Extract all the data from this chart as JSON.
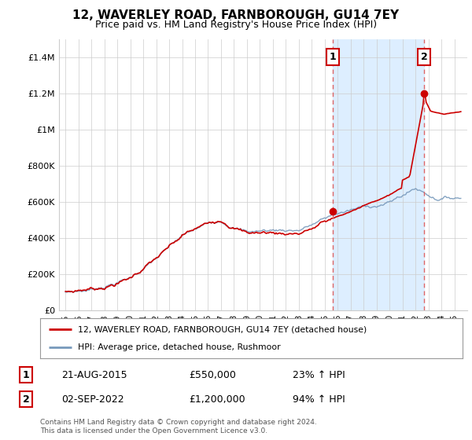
{
  "title": "12, WAVERLEY ROAD, FARNBOROUGH, GU14 7EY",
  "subtitle": "Price paid vs. HM Land Registry's House Price Index (HPI)",
  "legend_line1": "12, WAVERLEY ROAD, FARNBOROUGH, GU14 7EY (detached house)",
  "legend_line2": "HPI: Average price, detached house, Rushmoor",
  "annotation1_label": "1",
  "annotation1_date": "21-AUG-2015",
  "annotation1_price": "£550,000",
  "annotation1_hpi": "23% ↑ HPI",
  "annotation2_label": "2",
  "annotation2_date": "02-SEP-2022",
  "annotation2_price": "£1,200,000",
  "annotation2_hpi": "94% ↑ HPI",
  "footer": "Contains HM Land Registry data © Crown copyright and database right 2024.\nThis data is licensed under the Open Government Licence v3.0.",
  "sale1_x": 2015.64,
  "sale1_y": 550000,
  "sale2_x": 2022.67,
  "sale2_y": 1200000,
  "red_color": "#cc0000",
  "blue_color": "#7799bb",
  "shade_color": "#ddeeff",
  "dashed_color": "#dd6666",
  "grid_color": "#cccccc",
  "background_color": "#ffffff",
  "ylim_min": 0,
  "ylim_max": 1500000,
  "xlim_min": 1994.5,
  "xlim_max": 2026.0,
  "yticks": [
    0,
    200000,
    400000,
    600000,
    800000,
    1000000,
    1200000,
    1400000
  ],
  "ytick_labels": [
    "£0",
    "£200K",
    "£400K",
    "£600K",
    "£800K",
    "£1M",
    "£1.2M",
    "£1.4M"
  ],
  "xticks": [
    1995,
    1996,
    1997,
    1998,
    1999,
    2000,
    2001,
    2002,
    2003,
    2004,
    2005,
    2006,
    2007,
    2008,
    2009,
    2010,
    2011,
    2012,
    2013,
    2014,
    2015,
    2016,
    2017,
    2018,
    2019,
    2020,
    2021,
    2022,
    2023,
    2024,
    2025
  ]
}
